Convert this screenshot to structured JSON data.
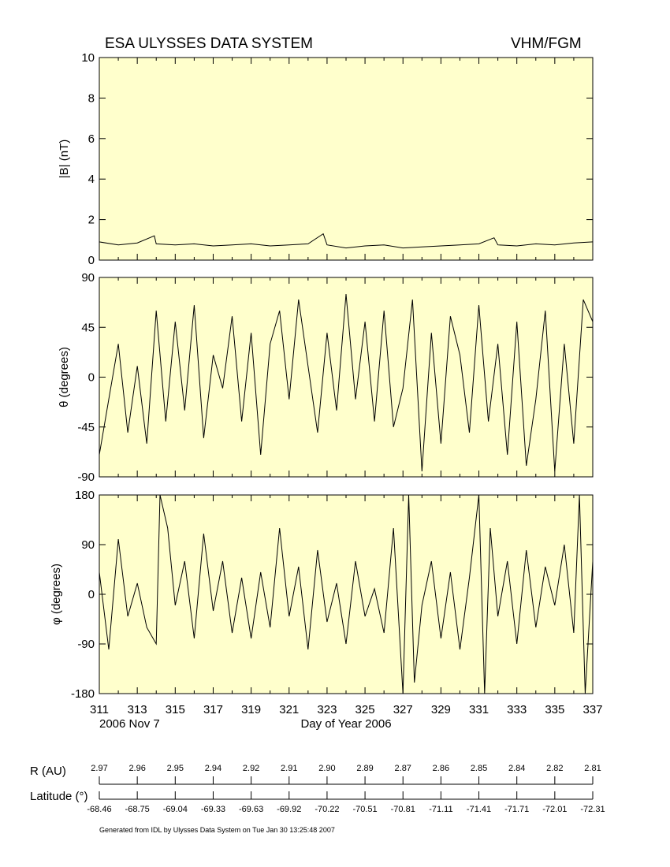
{
  "header": {
    "left_title": "ESA ULYSSES DATA SYSTEM",
    "right_title": "VHM/FGM"
  },
  "colors": {
    "panel_bg": "#ffffcc",
    "line": "#000000"
  },
  "chart_data": [
    {
      "type": "line",
      "panel": "magnitude",
      "ylabel": "|B| (nT)",
      "ylim": [
        0,
        10
      ],
      "yticks": [
        "0",
        "2",
        "4",
        "6",
        "8",
        "10"
      ],
      "xlim": [
        311,
        337
      ],
      "series": [
        {
          "x": [
            311,
            312,
            313,
            313.9,
            314,
            315,
            316,
            317,
            318,
            319,
            320,
            321,
            322,
            322.8,
            323,
            324,
            325,
            326,
            327,
            328,
            329,
            330,
            331,
            331.8,
            332,
            333,
            334,
            335,
            336,
            337
          ],
          "values": [
            0.9,
            0.75,
            0.85,
            1.2,
            0.8,
            0.75,
            0.8,
            0.7,
            0.75,
            0.8,
            0.7,
            0.75,
            0.8,
            1.3,
            0.75,
            0.6,
            0.7,
            0.75,
            0.6,
            0.65,
            0.7,
            0.75,
            0.8,
            1.1,
            0.75,
            0.7,
            0.8,
            0.75,
            0.85,
            0.9
          ]
        }
      ]
    },
    {
      "type": "line",
      "panel": "theta",
      "ylabel": "θ (degrees)",
      "ylim": [
        -90,
        90
      ],
      "yticks": [
        "-90",
        "-45",
        "0",
        "45",
        "90"
      ],
      "xlim": [
        311,
        337
      ],
      "series": [
        {
          "x": [
            311,
            311.5,
            312,
            312.5,
            313,
            313.5,
            314,
            314.5,
            315,
            315.5,
            316,
            316.5,
            317,
            317.5,
            318,
            318.5,
            319,
            319.5,
            320,
            320.5,
            321,
            321.5,
            322,
            322.5,
            323,
            323.5,
            324,
            324.5,
            325,
            325.5,
            326,
            326.5,
            327,
            327.5,
            328,
            328.5,
            329,
            329.5,
            330,
            330.5,
            331,
            331.5,
            332,
            332.5,
            333,
            333.5,
            334,
            334.5,
            335,
            335.5,
            336,
            336.5,
            337
          ],
          "values": [
            -70,
            -20,
            30,
            -50,
            10,
            -60,
            60,
            -40,
            50,
            -30,
            65,
            -55,
            20,
            -10,
            55,
            -40,
            40,
            -70,
            30,
            60,
            -20,
            70,
            10,
            -50,
            40,
            -30,
            75,
            -20,
            50,
            -40,
            60,
            -45,
            -10,
            70,
            -85,
            40,
            -60,
            55,
            20,
            -50,
            65,
            -40,
            30,
            -70,
            50,
            -80,
            -20,
            60,
            -85,
            30,
            -60,
            70,
            50
          ]
        }
      ]
    },
    {
      "type": "line",
      "panel": "phi",
      "ylabel": "φ (degrees)",
      "ylim": [
        -180,
        180
      ],
      "yticks": [
        "-180",
        "-90",
        "0",
        "90",
        "180"
      ],
      "xlim": [
        311,
        337
      ],
      "series": [
        {
          "x": [
            311,
            311.5,
            312,
            312.5,
            313,
            313.5,
            314,
            314.2,
            314.6,
            315,
            315.5,
            316,
            316.5,
            317,
            317.5,
            318,
            318.5,
            319,
            319.5,
            320,
            320.5,
            321,
            321.5,
            322,
            322.5,
            323,
            323.5,
            324,
            324.5,
            325,
            325.5,
            326,
            326.5,
            327,
            327.3,
            327.6,
            328,
            328.5,
            329,
            329.5,
            330,
            330.5,
            331,
            331.3,
            331.6,
            332,
            332.5,
            333,
            333.5,
            334,
            334.5,
            335,
            335.5,
            336,
            336.3,
            336.6,
            337
          ],
          "values": [
            40,
            -100,
            100,
            -40,
            20,
            -60,
            -90,
            180,
            120,
            -20,
            60,
            -80,
            110,
            -30,
            60,
            -70,
            30,
            -80,
            40,
            -60,
            120,
            -40,
            50,
            -100,
            80,
            -50,
            20,
            -90,
            60,
            -40,
            10,
            -70,
            120,
            -180,
            180,
            -160,
            -20,
            60,
            -80,
            40,
            -100,
            30,
            180,
            -180,
            120,
            -40,
            60,
            -90,
            80,
            -60,
            50,
            -20,
            90,
            -70,
            180,
            -180,
            60
          ]
        }
      ]
    }
  ],
  "x_axis": {
    "ticks": [
      "311",
      "313",
      "315",
      "317",
      "319",
      "321",
      "323",
      "325",
      "327",
      "329",
      "331",
      "333",
      "335",
      "337"
    ],
    "date_label": "2006 Nov  7",
    "title": "Day of Year 2006"
  },
  "orbit": {
    "r_label": "R (AU)",
    "r_values": [
      "2.97",
      "2.96",
      "2.95",
      "2.94",
      "2.92",
      "2.91",
      "2.90",
      "2.89",
      "2.87",
      "2.86",
      "2.85",
      "2.84",
      "2.82",
      "2.81"
    ],
    "lat_label": "Latitude (°)",
    "lat_values": [
      "-68.46",
      "-68.75",
      "-69.04",
      "-69.33",
      "-69.63",
      "-69.92",
      "-70.22",
      "-70.51",
      "-70.81",
      "-71.11",
      "-71.41",
      "-71.71",
      "-72.01",
      "-72.31"
    ]
  },
  "footer": "Generated from IDL by Ulysses Data System on Tue Jan 30 13:25:48 2007"
}
